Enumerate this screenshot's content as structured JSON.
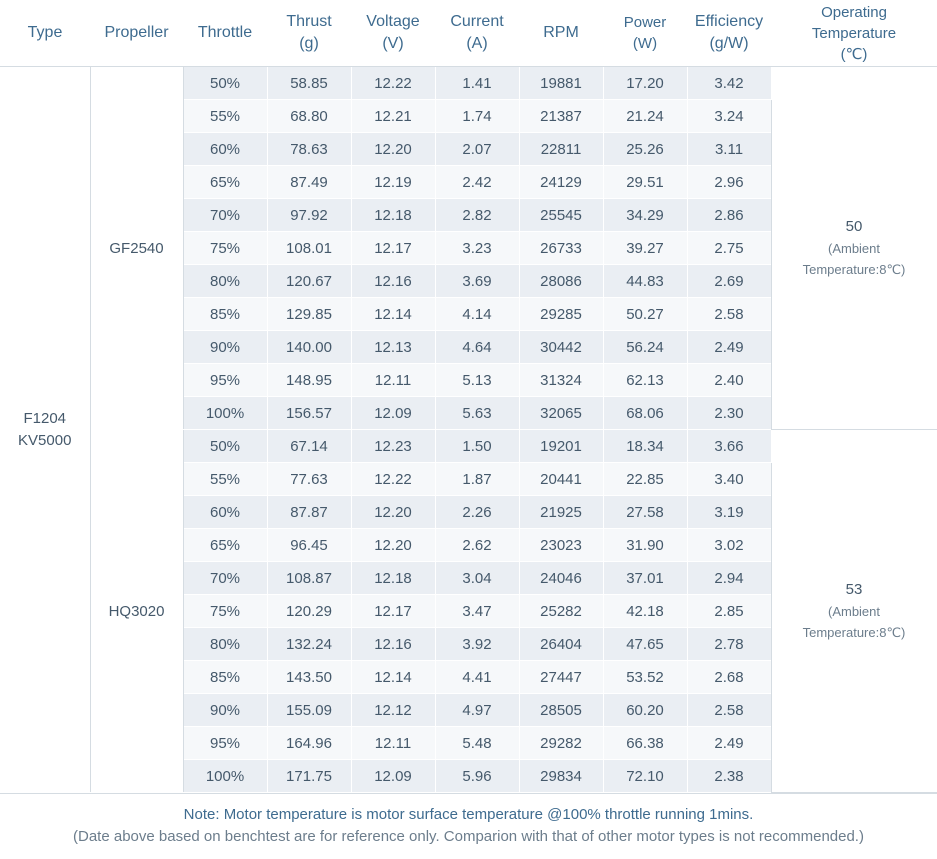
{
  "headers": {
    "type": "Type",
    "propeller": "Propeller",
    "throttle": "Throttle",
    "thrust": [
      "Thrust",
      "(g)"
    ],
    "voltage": [
      "Voltage",
      "(V)"
    ],
    "current": [
      "Current",
      "(A)"
    ],
    "rpm": "RPM",
    "power": [
      "Power",
      "(W)"
    ],
    "efficiency": [
      "Efficiency",
      "(g/W)"
    ],
    "temperature": [
      "Operating",
      "Temperature",
      "(℃)"
    ]
  },
  "motor_type": [
    "F1204",
    "KV5000"
  ],
  "groups": [
    {
      "propeller": "GF2540",
      "temperature": "50",
      "ambient": [
        "(Ambient",
        "Temperature:8℃)"
      ],
      "rows": [
        [
          "50%",
          "58.85",
          "12.22",
          "1.41",
          "19881",
          "17.20",
          "3.42"
        ],
        [
          "55%",
          "68.80",
          "12.21",
          "1.74",
          "21387",
          "21.24",
          "3.24"
        ],
        [
          "60%",
          "78.63",
          "12.20",
          "2.07",
          "22811",
          "25.26",
          "3.11"
        ],
        [
          "65%",
          "87.49",
          "12.19",
          "2.42",
          "24129",
          "29.51",
          "2.96"
        ],
        [
          "70%",
          "97.92",
          "12.18",
          "2.82",
          "25545",
          "34.29",
          "2.86"
        ],
        [
          "75%",
          "108.01",
          "12.17",
          "3.23",
          "26733",
          "39.27",
          "2.75"
        ],
        [
          "80%",
          "120.67",
          "12.16",
          "3.69",
          "28086",
          "44.83",
          "2.69"
        ],
        [
          "85%",
          "129.85",
          "12.14",
          "4.14",
          "29285",
          "50.27",
          "2.58"
        ],
        [
          "90%",
          "140.00",
          "12.13",
          "4.64",
          "30442",
          "56.24",
          "2.49"
        ],
        [
          "95%",
          "148.95",
          "12.11",
          "5.13",
          "31324",
          "62.13",
          "2.40"
        ],
        [
          "100%",
          "156.57",
          "12.09",
          "5.63",
          "32065",
          "68.06",
          "2.30"
        ]
      ]
    },
    {
      "propeller": "HQ3020",
      "temperature": "53",
      "ambient": [
        "(Ambient",
        "Temperature:8℃)"
      ],
      "rows": [
        [
          "50%",
          "67.14",
          "12.23",
          "1.50",
          "19201",
          "18.34",
          "3.66"
        ],
        [
          "55%",
          "77.63",
          "12.22",
          "1.87",
          "20441",
          "22.85",
          "3.40"
        ],
        [
          "60%",
          "87.87",
          "12.20",
          "2.26",
          "21925",
          "27.58",
          "3.19"
        ],
        [
          "65%",
          "96.45",
          "12.20",
          "2.62",
          "23023",
          "31.90",
          "3.02"
        ],
        [
          "70%",
          "108.87",
          "12.18",
          "3.04",
          "24046",
          "37.01",
          "2.94"
        ],
        [
          "75%",
          "120.29",
          "12.17",
          "3.47",
          "25282",
          "42.18",
          "2.85"
        ],
        [
          "80%",
          "132.24",
          "12.16",
          "3.92",
          "26404",
          "47.65",
          "2.78"
        ],
        [
          "85%",
          "143.50",
          "12.14",
          "4.41",
          "27447",
          "53.52",
          "2.68"
        ],
        [
          "90%",
          "155.09",
          "12.12",
          "4.97",
          "28505",
          "60.20",
          "2.58"
        ],
        [
          "95%",
          "164.96",
          "12.11",
          "5.48",
          "29282",
          "66.38",
          "2.49"
        ],
        [
          "100%",
          "171.75",
          "12.09",
          "5.96",
          "29834",
          "72.10",
          "2.38"
        ]
      ]
    }
  ],
  "note": {
    "line1": "Note: Motor temperature is motor surface temperature @100% throttle running 1mins.",
    "line2": "(Date above based on benchtest are for reference only. Comparion with that of other motor types is not recommended.)"
  },
  "colors": {
    "header_text": "#3e6b8f",
    "row_odd": "#eaeef3",
    "row_even": "#f6f8fa",
    "border": "#d5dce2"
  }
}
